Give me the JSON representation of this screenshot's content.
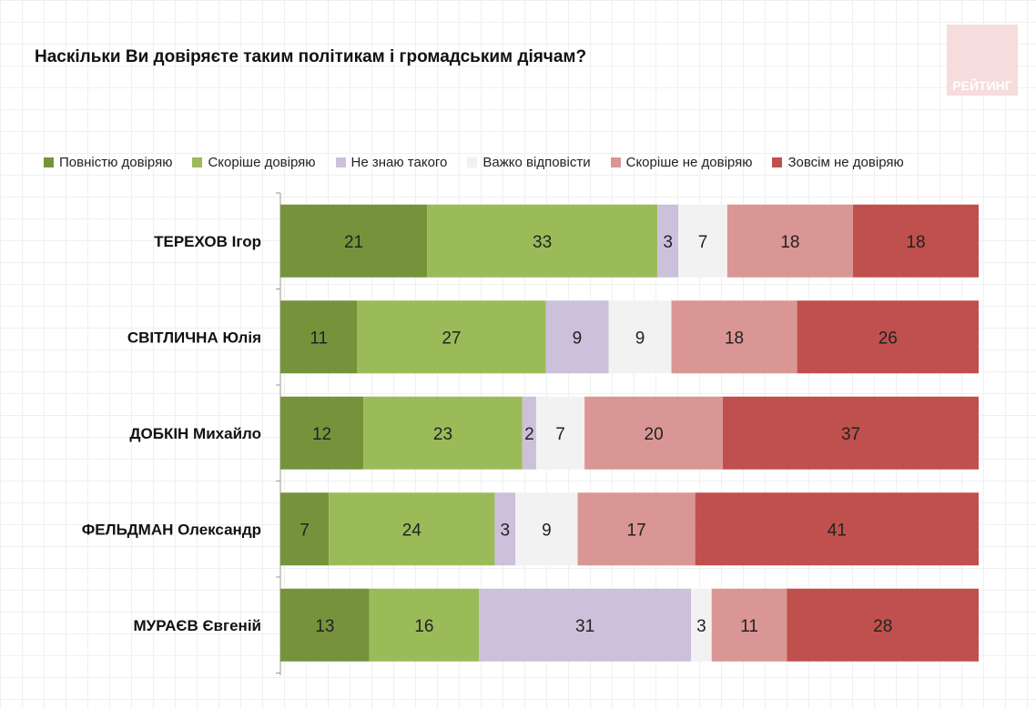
{
  "chart_data": {
    "type": "bar",
    "orientation": "horizontal",
    "stacked": true,
    "normalized": true,
    "title": "Наскільки Ви довіряєте таким політикам і громадським діячам?",
    "categories": [
      "ТЕРЕХОВ Ігор",
      "СВІТЛИЧНА Юлія",
      "ДОБКІН Михайло",
      "ФЕЛЬДМАН Олександр",
      "МУРАЄВ Євгеній"
    ],
    "series": [
      {
        "name": "Повністю довіряю",
        "color": "#76933c",
        "values": [
          21,
          11,
          12,
          7,
          13
        ]
      },
      {
        "name": "Скоріше довіряю",
        "color": "#9bbb59",
        "values": [
          33,
          27,
          23,
          24,
          16
        ]
      },
      {
        "name": "Не знаю такого",
        "color": "#ccc0da",
        "values": [
          3,
          9,
          2,
          3,
          31
        ]
      },
      {
        "name": "Важко відповісти",
        "color": "#f2f2f2",
        "values": [
          7,
          9,
          7,
          9,
          3
        ]
      },
      {
        "name": "Скоріше не довіряю",
        "color": "#da9694",
        "values": [
          18,
          18,
          20,
          17,
          11
        ]
      },
      {
        "name": "Зовсім не довіряю",
        "color": "#c0504d",
        "values": [
          18,
          26,
          37,
          41,
          28
        ]
      }
    ],
    "legend_position": "top",
    "grid": false
  },
  "logo": "РЕЙТИНГ"
}
